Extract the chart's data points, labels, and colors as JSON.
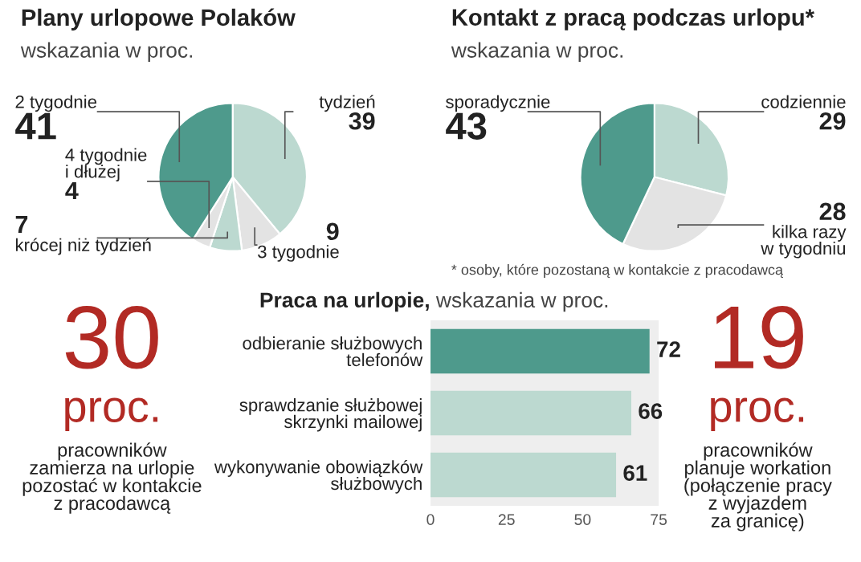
{
  "chart_data": [
    {
      "type": "pie",
      "title": "Plany urlopowe Polaków",
      "subtitle": "wskazania w proc.",
      "categories": [
        "tydzień",
        "3 tygodnie",
        "krócej niż tydzień",
        "4 tygodnie\ni dłużej",
        "2 tygodnie"
      ],
      "values": [
        39,
        9,
        7,
        4,
        41
      ],
      "colors": [
        "#bcd9d0",
        "#e3e3e3",
        "#bcd9d0",
        "#e3e3e3",
        "#4e9a8c"
      ],
      "data_labels": true
    },
    {
      "type": "pie",
      "title": "Kontakt z pracą podczas urlopu*",
      "subtitle": "wskazania w proc.",
      "categories": [
        "codziennie",
        "kilka razy\nw tygodniu",
        "sporadycznie"
      ],
      "values": [
        29,
        28,
        43
      ],
      "colors": [
        "#bcd9d0",
        "#e3e3e3",
        "#4e9a8c"
      ],
      "data_labels": true,
      "annotations": [
        "* osoby, które pozostaną w kontakcie z pracodawcą"
      ]
    },
    {
      "type": "bar",
      "orientation": "horizontal",
      "title": "Praca na urlopie,",
      "subtitle": "wskazania w proc.",
      "categories": [
        "odbieranie służbowych\ntelefonów",
        "sprawdzanie służbowej\nskrzynki mailowej",
        "wykonywanie obowiązków\nsłużbowych"
      ],
      "values": [
        72,
        66,
        61
      ],
      "colors": [
        "#4e9a8c",
        "#bcd9d0",
        "#bcd9d0"
      ],
      "xlim": [
        0,
        75
      ],
      "xticks": [
        0,
        25,
        50,
        75
      ],
      "data_labels": true,
      "grid": false
    },
    {
      "type": "other",
      "title": "30",
      "subtitle": "proc.",
      "annotations": [
        "pracowników\nzamierza na urlopie\npozostać w kontakcie\nz pracodawcą"
      ]
    },
    {
      "type": "other",
      "title": "19",
      "subtitle": "proc.",
      "annotations": [
        "pracowników\nplanuje workation\n(połączenie pracy\nz wyjazdem\nza granicę)"
      ]
    }
  ]
}
